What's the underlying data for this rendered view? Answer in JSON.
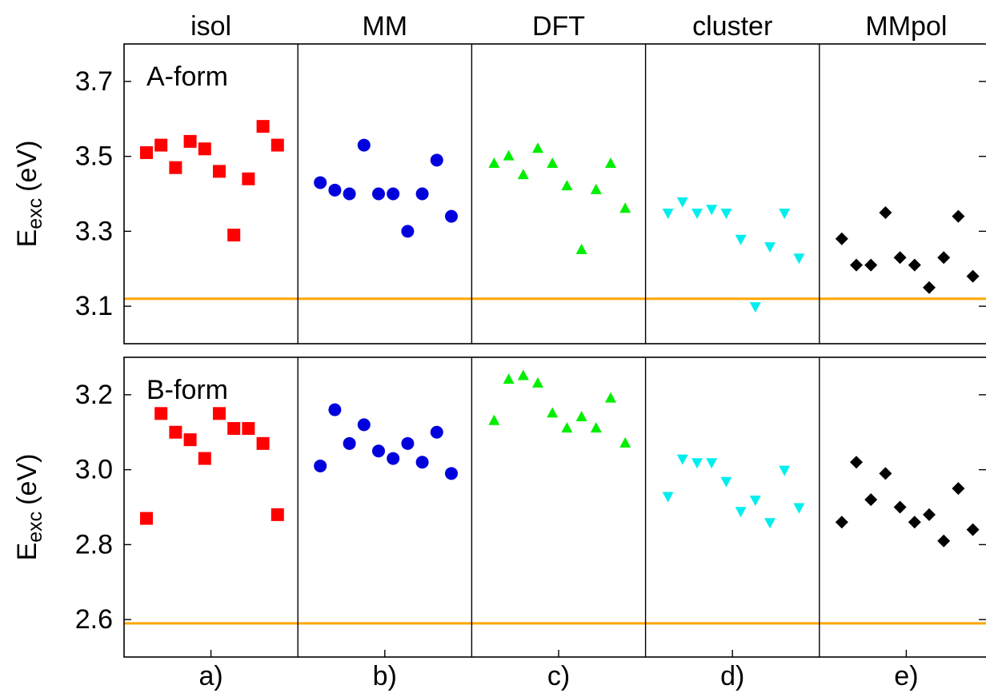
{
  "chart_data": [
    {
      "type": "scatter",
      "annotation": "A-form",
      "ylabel": "E",
      "ylabel_sub": "exc",
      "ylabel_unit": "(eV)",
      "ylim": [
        3.0,
        3.8
      ],
      "yticks": [
        3.1,
        3.3,
        3.5,
        3.7
      ],
      "reference_line": {
        "value": 3.12,
        "color": "#ffa500"
      },
      "series": [
        {
          "name": "isol",
          "color": "#ff0000",
          "marker": "square",
          "values": [
            3.51,
            3.53,
            3.47,
            3.54,
            3.52,
            3.46,
            3.29,
            3.44,
            3.58,
            3.53
          ]
        },
        {
          "name": "MM",
          "color": "#0000dd",
          "marker": "circle",
          "values": [
            3.43,
            3.41,
            3.4,
            3.53,
            3.4,
            3.4,
            3.3,
            3.4,
            3.49,
            3.34
          ]
        },
        {
          "name": "DFT",
          "color": "#00ee00",
          "marker": "triangle-up",
          "values": [
            3.48,
            3.5,
            3.45,
            3.52,
            3.48,
            3.42,
            3.25,
            3.41,
            3.48,
            3.36
          ]
        },
        {
          "name": "cluster",
          "color": "#00eeee",
          "marker": "triangle-down",
          "values": [
            3.35,
            3.38,
            3.35,
            3.36,
            3.35,
            3.28,
            3.1,
            3.26,
            3.35,
            3.23
          ]
        },
        {
          "name": "MMpol",
          "color": "#000000",
          "marker": "diamond",
          "values": [
            3.28,
            3.21,
            3.21,
            3.35,
            3.23,
            3.21,
            3.15,
            3.23,
            3.34,
            3.18
          ]
        }
      ]
    },
    {
      "type": "scatter",
      "annotation": "B-form",
      "ylabel": "E",
      "ylabel_sub": "exc",
      "ylabel_unit": "(eV)",
      "categories": [
        "a)",
        "b)",
        "c)",
        "d)",
        "e)"
      ],
      "ylim": [
        2.5,
        3.3
      ],
      "yticks": [
        2.6,
        2.8,
        {
          "value": 3,
          "label": "3.0"
        },
        3.2
      ],
      "reference_line": {
        "value": 2.59,
        "color": "#ffa500"
      },
      "series": [
        {
          "color": "#ff0000",
          "marker": "square",
          "values": [
            2.87,
            3.15,
            3.1,
            3.08,
            3.03,
            3.15,
            3.11,
            3.11,
            3.07,
            2.88
          ]
        },
        {
          "color": "#0000dd",
          "marker": "circle",
          "values": [
            3.01,
            3.16,
            3.07,
            3.12,
            3.05,
            3.03,
            3.07,
            3.02,
            3.1,
            2.99
          ]
        },
        {
          "color": "#00ee00",
          "marker": "triangle-up",
          "values": [
            3.13,
            3.24,
            3.25,
            3.23,
            3.15,
            3.11,
            3.14,
            3.11,
            3.19,
            3.07
          ]
        },
        {
          "color": "#00eeee",
          "marker": "triangle-down",
          "values": [
            2.93,
            3.03,
            3.02,
            3.02,
            2.97,
            2.89,
            2.92,
            2.86,
            3.0,
            2.9
          ]
        },
        {
          "color": "#000000",
          "marker": "diamond",
          "values": [
            2.86,
            3.02,
            2.92,
            2.99,
            2.9,
            2.86,
            2.88,
            2.81,
            2.95,
            2.84
          ]
        }
      ]
    }
  ]
}
